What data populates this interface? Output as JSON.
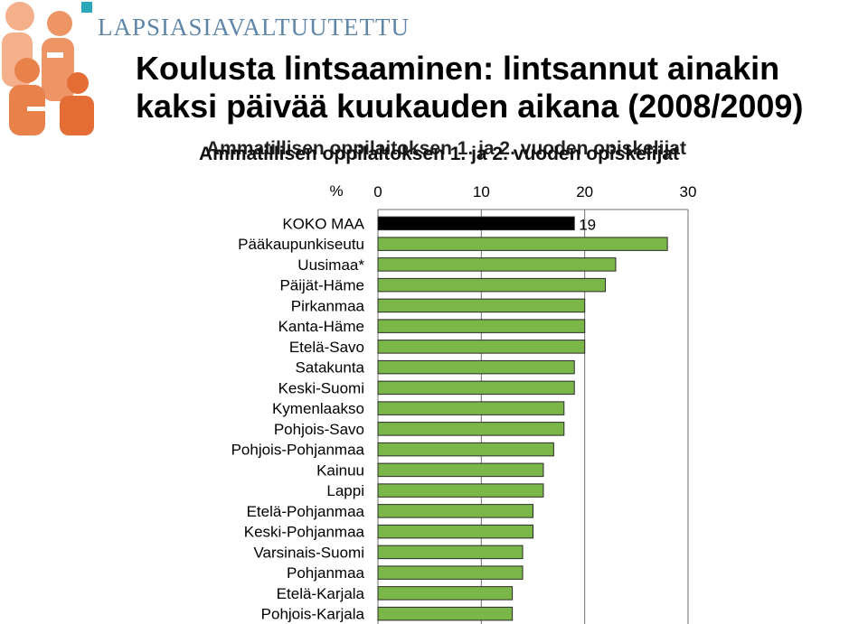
{
  "brand": {
    "name": "LAPSIASIAVALTUUTETTU",
    "accent": "#e9814b"
  },
  "slide": {
    "title_line1": "Koulusta lintsaaminen: lintsannut ainakin",
    "title_line2": "kaksi päivää kuukauden aikana (2008/2009)",
    "subtitle": "Ammatillisen oppilaitoksen 1. ja 2. vuoden opiskelijat"
  },
  "chart_data": {
    "type": "bar",
    "orientation": "horizontal",
    "unit_label": "%",
    "xlim": [
      0,
      30
    ],
    "xticks": [
      0,
      10,
      20,
      30
    ],
    "categories": [
      "KOKO MAA",
      "Pääkaupunkiseutu",
      "Uusimaa*",
      "Päijät-Häme",
      "Pirkanmaa",
      "Kanta-Häme",
      "Etelä-Savo",
      "Satakunta",
      "Keski-Suomi",
      "Kymenlaakso",
      "Pohjois-Savo",
      "Pohjois-Pohjanmaa",
      "Kainuu",
      "Lappi",
      "Etelä-Pohjanmaa",
      "Keski-Pohjanmaa",
      "Varsinais-Suomi",
      "Pohjanmaa",
      "Etelä-Karjala",
      "Pohjois-Karjala"
    ],
    "values": [
      19,
      28,
      23,
      22,
      20,
      20,
      20,
      19,
      19,
      18,
      18,
      17,
      16,
      16,
      15,
      15,
      14,
      14,
      13,
      13
    ],
    "data_labels": [
      "19",
      "",
      "",
      "",
      "",
      "",
      "",
      "",
      "",
      "",
      "",
      "",
      "",
      "",
      "",
      "",
      "",
      "",
      "",
      ""
    ],
    "colors": {
      "highlight": "#000000",
      "bar": "#7ab648",
      "bar_edge": "#2a2a2a"
    },
    "grid": true
  }
}
